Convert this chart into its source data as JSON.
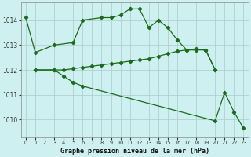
{
  "title": "Graphe pression niveau de la mer (hPa)",
  "background_color": "#cff0f0",
  "line_color": "#1a6b1a",
  "xlim": [
    -0.5,
    23.5
  ],
  "ylim": [
    1009.3,
    1014.7
  ],
  "yticks": [
    1010,
    1011,
    1012,
    1013,
    1014
  ],
  "xticks": [
    0,
    1,
    2,
    3,
    4,
    5,
    6,
    7,
    8,
    9,
    10,
    11,
    12,
    13,
    14,
    15,
    16,
    17,
    18,
    19,
    20,
    21,
    22,
    23
  ],
  "series1_x": [
    0,
    1,
    3,
    5,
    6,
    8,
    9,
    10,
    11,
    12,
    13,
    14,
    15,
    16,
    17,
    18,
    19,
    20
  ],
  "series1_y": [
    1014.1,
    1012.7,
    1013.0,
    1013.1,
    1014.0,
    1014.1,
    1014.1,
    1014.2,
    1014.45,
    1014.45,
    1013.7,
    1014.0,
    1013.7,
    1013.2,
    1012.8,
    1012.8,
    1012.8,
    1012.0
  ],
  "series2_x": [
    1,
    3,
    4,
    5,
    6,
    7,
    8,
    9,
    10,
    11,
    12,
    13,
    14,
    15,
    16,
    17,
    18,
    19,
    20
  ],
  "series2_y": [
    1012.0,
    1012.0,
    1012.0,
    1012.05,
    1012.1,
    1012.15,
    1012.2,
    1012.25,
    1012.3,
    1012.35,
    1012.4,
    1012.45,
    1012.55,
    1012.65,
    1012.75,
    1012.8,
    1012.85,
    1012.8,
    1012.0
  ],
  "series3_x": [
    1,
    3,
    4,
    5,
    6,
    20,
    21,
    22,
    23
  ],
  "series3_y": [
    1012.0,
    1012.0,
    1011.75,
    1011.5,
    1011.35,
    1009.95,
    1011.1,
    1010.3,
    1009.65
  ]
}
